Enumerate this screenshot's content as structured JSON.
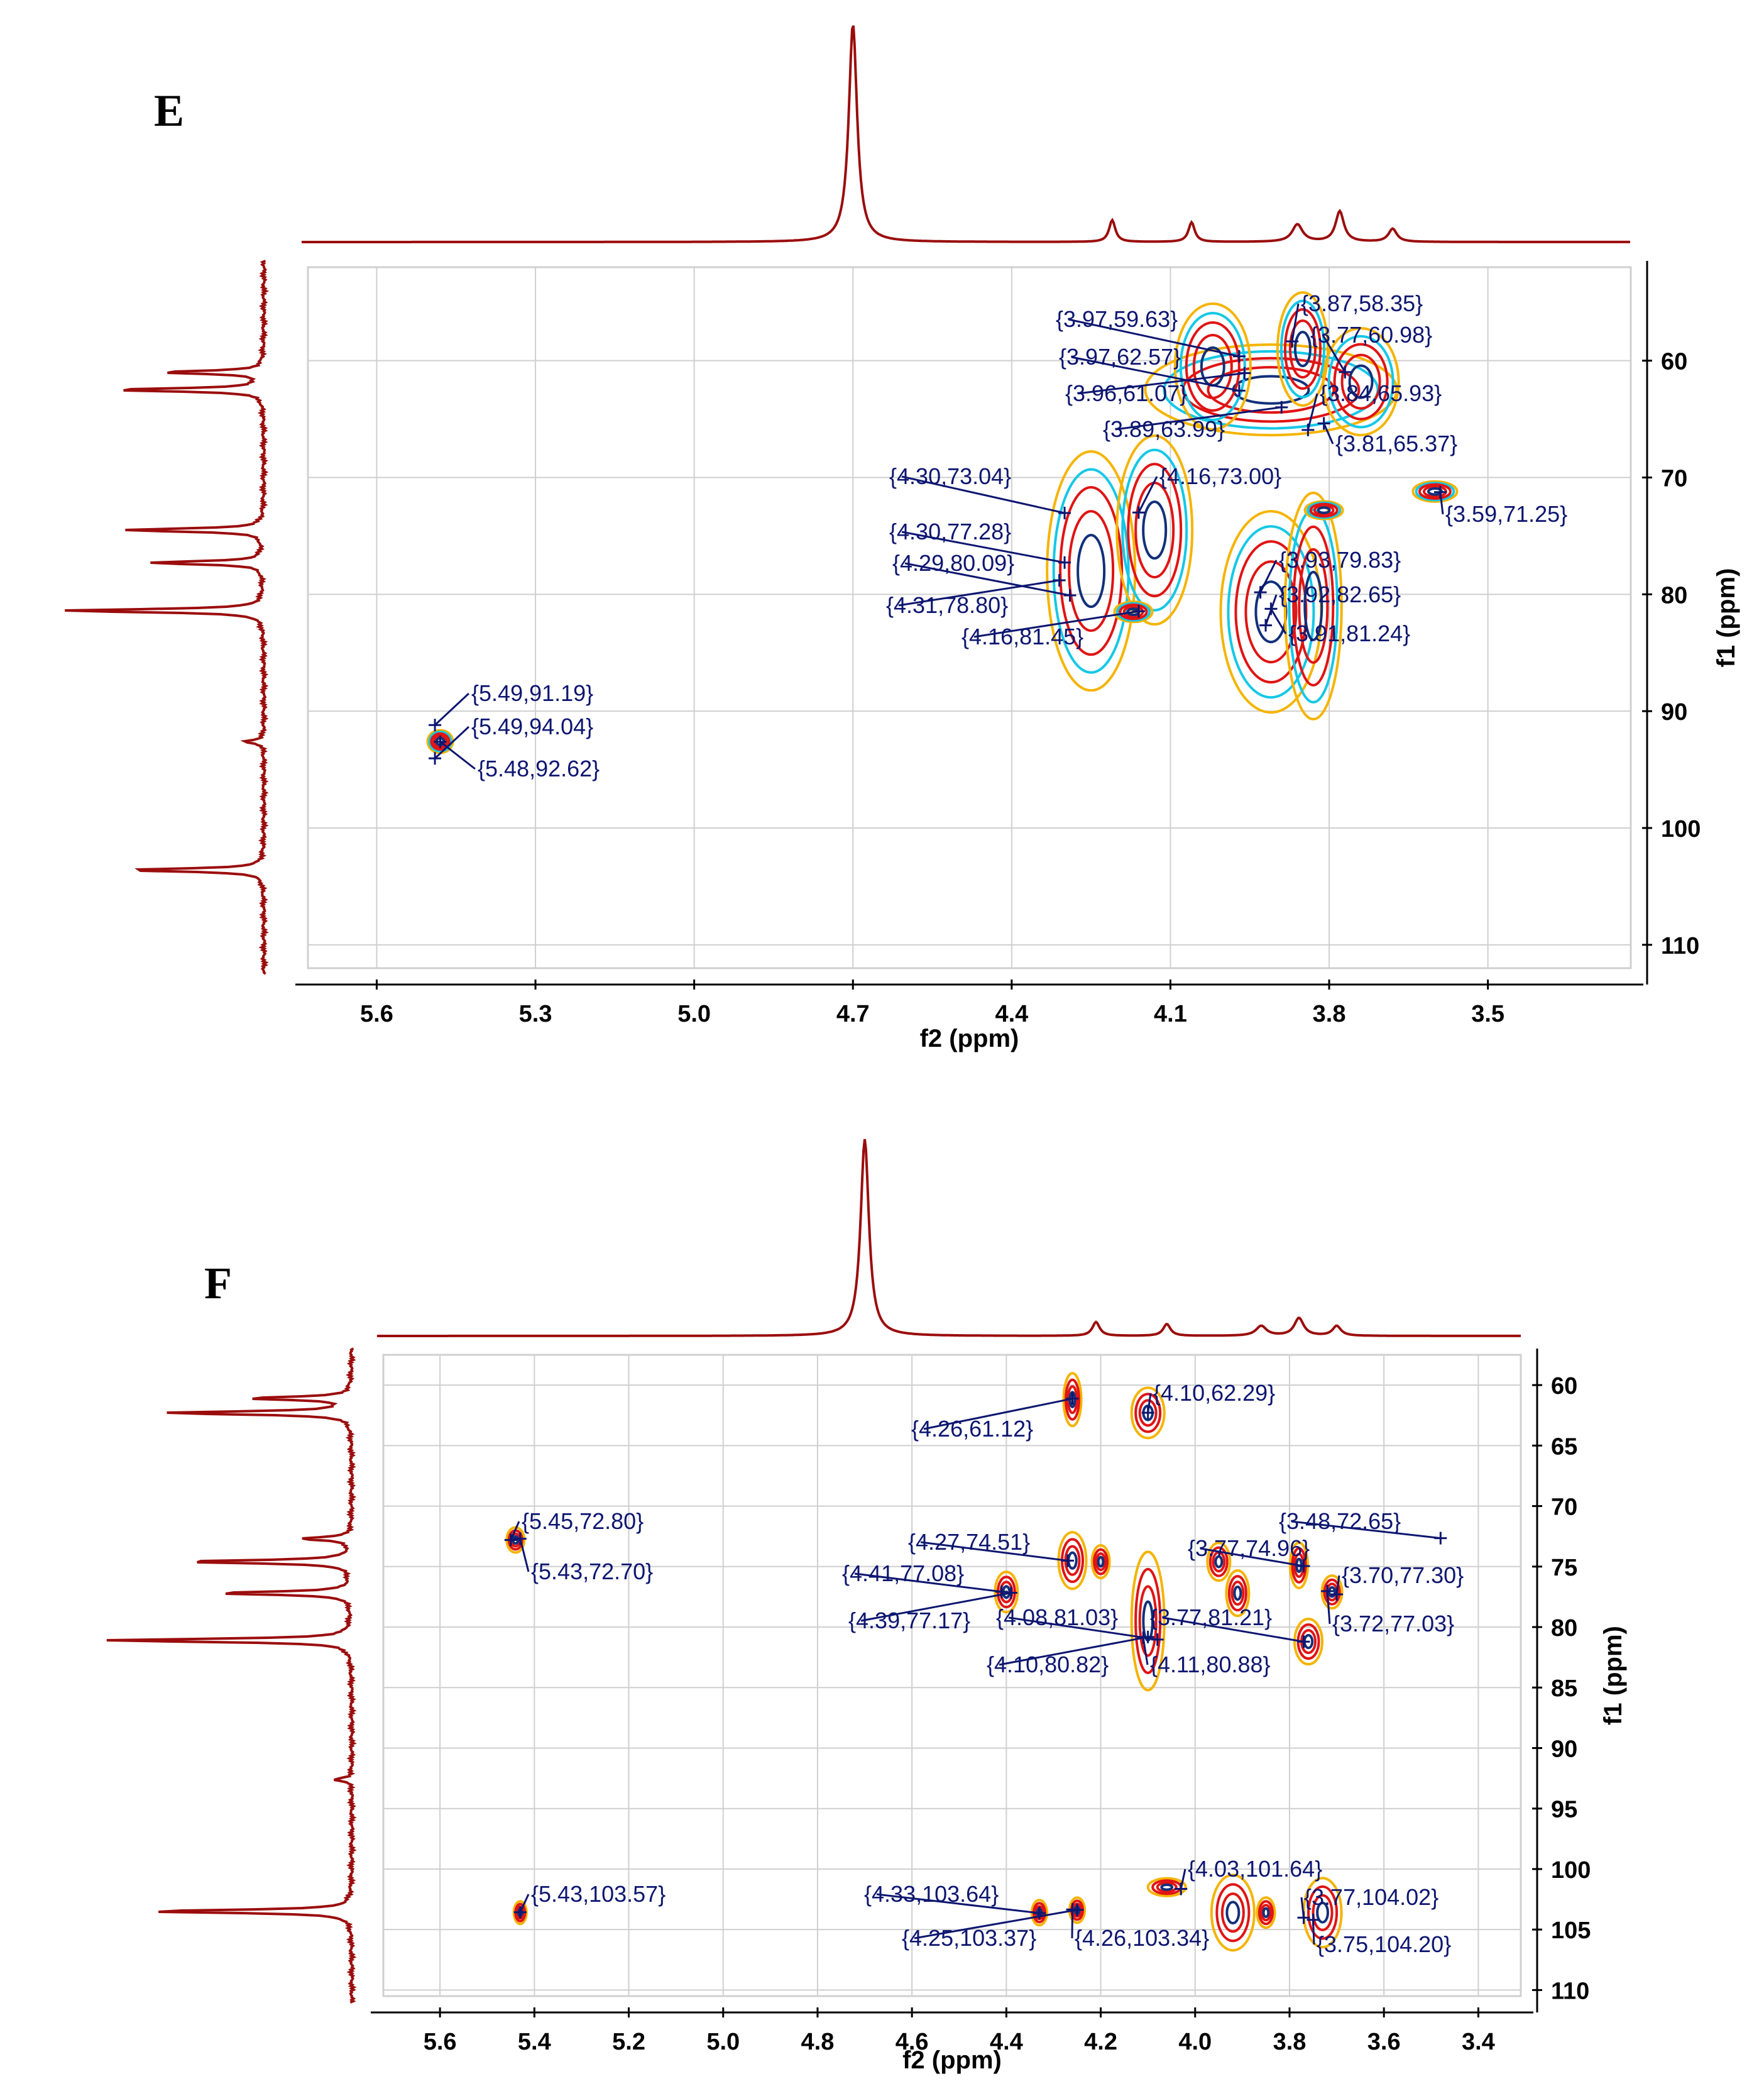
{
  "figure": {
    "panels": [
      "E",
      "F"
    ]
  },
  "colors": {
    "spectrum": "#9b0d0d",
    "label": "#0d1670",
    "contour_yellow": "#f5b400",
    "contour_red": "#e01414",
    "contour_cyan": "#14c8e6",
    "contour_navy": "#12307a"
  },
  "chart_data": [
    {
      "panel": "E",
      "type": "scatter",
      "subtype": "2D NMR HSQC contour plot",
      "title": "E",
      "xlabel": "f2 (ppm)",
      "ylabel": "f1 (ppm)",
      "xlim": [
        5.73,
        3.23
      ],
      "ylim": [
        52,
        112
      ],
      "x_ticks": [
        "5.6",
        "5.3",
        "5.0",
        "4.7",
        "4.4",
        "4.1",
        "3.8",
        "3.5"
      ],
      "y_ticks": [
        "60",
        "70",
        "80",
        "90",
        "100",
        "110"
      ],
      "peaks": [
        {
          "label": "{3.97,59.63}",
          "x": 3.97,
          "y": 59.63
        },
        {
          "label": "{3.87,58.35}",
          "x": 3.87,
          "y": 58.35
        },
        {
          "label": "{3.97,62.57}",
          "x": 3.97,
          "y": 62.57
        },
        {
          "label": "{3.77,60.98}",
          "x": 3.77,
          "y": 60.98
        },
        {
          "label": "{3.96,61.07}",
          "x": 3.96,
          "y": 61.07
        },
        {
          "label": "{3.84,65.93}",
          "x": 3.84,
          "y": 65.93
        },
        {
          "label": "{3.89,63.99}",
          "x": 3.89,
          "y": 63.99
        },
        {
          "label": "{3.81,65.37}",
          "x": 3.81,
          "y": 65.37
        },
        {
          "label": "{4.30,73.04}",
          "x": 4.3,
          "y": 73.04
        },
        {
          "label": "{4.16,73.00}",
          "x": 4.16,
          "y": 73.0
        },
        {
          "label": "{3.59,71.25}",
          "x": 3.59,
          "y": 71.25
        },
        {
          "label": "{4.30,77.28}",
          "x": 4.3,
          "y": 77.28
        },
        {
          "label": "{4.29,80.09}",
          "x": 4.29,
          "y": 80.09
        },
        {
          "label": "{3.93,79.83}",
          "x": 3.93,
          "y": 79.83
        },
        {
          "label": "{4.31,78.80}",
          "x": 4.31,
          "y": 78.8
        },
        {
          "label": "{3.92,82.65}",
          "x": 3.92,
          "y": 82.65
        },
        {
          "label": "{4.16,81.45}",
          "x": 4.16,
          "y": 81.45
        },
        {
          "label": "{3.91,81.24}",
          "x": 3.91,
          "y": 81.24
        },
        {
          "label": "{5.49,91.19}",
          "x": 5.49,
          "y": 91.19
        },
        {
          "label": "{5.49,94.04}",
          "x": 5.49,
          "y": 94.04
        },
        {
          "label": "{5.48,92.62}",
          "x": 5.48,
          "y": 92.62
        }
      ]
    },
    {
      "panel": "F",
      "type": "scatter",
      "subtype": "2D NMR HSQC contour plot",
      "title": "F",
      "xlabel": "f2 (ppm)",
      "ylabel": "f1 (ppm)",
      "xlim": [
        5.72,
        3.31
      ],
      "ylim": [
        57.5,
        110.5
      ],
      "x_ticks": [
        "5.6",
        "5.4",
        "5.2",
        "5.0",
        "4.8",
        "4.6",
        "4.4",
        "4.2",
        "4.0",
        "3.8",
        "3.6",
        "3.4"
      ],
      "y_ticks": [
        "60",
        "65",
        "70",
        "75",
        "80",
        "85",
        "90",
        "95",
        "100",
        "105",
        "110"
      ],
      "peaks": [
        {
          "label": "{4.10,62.29}",
          "x": 4.1,
          "y": 62.29
        },
        {
          "label": "{4.26,61.12}",
          "x": 4.26,
          "y": 61.12
        },
        {
          "label": "{5.45,72.80}",
          "x": 5.45,
          "y": 72.8
        },
        {
          "label": "{3.48,72.65}",
          "x": 3.48,
          "y": 72.65
        },
        {
          "label": "{5.43,72.70}",
          "x": 5.43,
          "y": 72.7
        },
        {
          "label": "{4.27,74.51}",
          "x": 4.27,
          "y": 74.51
        },
        {
          "label": "{3.77,74.96}",
          "x": 3.77,
          "y": 74.96
        },
        {
          "label": "{4.41,77.08}",
          "x": 4.41,
          "y": 77.08
        },
        {
          "label": "{3.70,77.30}",
          "x": 3.7,
          "y": 77.3
        },
        {
          "label": "{4.39,77.17}",
          "x": 4.39,
          "y": 77.17
        },
        {
          "label": "{4.08,81.03}",
          "x": 4.08,
          "y": 81.03
        },
        {
          "label": "{3.77,81.21}",
          "x": 3.77,
          "y": 81.21
        },
        {
          "label": "{3.72,77.03}",
          "x": 3.72,
          "y": 77.03
        },
        {
          "label": "{4.10,80.82}",
          "x": 4.1,
          "y": 80.82
        },
        {
          "label": "{4.11,80.88}",
          "x": 4.11,
          "y": 80.88
        },
        {
          "label": "{4.03,101.64}",
          "x": 4.03,
          "y": 101.64
        },
        {
          "label": "{5.43,103.57}",
          "x": 5.43,
          "y": 103.57
        },
        {
          "label": "{4.33,103.64}",
          "x": 4.33,
          "y": 103.64
        },
        {
          "label": "{3.77,104.02}",
          "x": 3.77,
          "y": 104.02
        },
        {
          "label": "{4.25,103.37}",
          "x": 4.25,
          "y": 103.37
        },
        {
          "label": "{4.26,103.34}",
          "x": 4.26,
          "y": 103.34
        },
        {
          "label": "{3.75,104.20}",
          "x": 3.75,
          "y": 104.2
        }
      ]
    }
  ]
}
